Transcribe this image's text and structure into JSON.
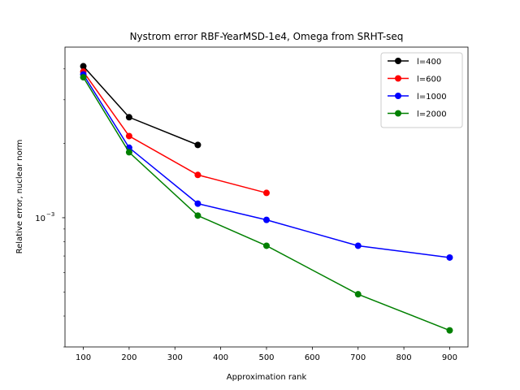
{
  "chart_data": {
    "type": "line",
    "title": "Nystrom error RBF-YearMSD-1e4, Omega from SRHT-seq",
    "xlabel": "Approximation rank",
    "ylabel": "Relative error, nuclear norm",
    "xlim": [
      60,
      940
    ],
    "ylim": [
      0.0003,
      0.0049
    ],
    "yscale": "log",
    "xticks": [
      100,
      200,
      300,
      400,
      500,
      600,
      700,
      800,
      900
    ],
    "yticks": [
      {
        "value": 0.001,
        "label": "10",
        "exp": "−3"
      }
    ],
    "grid": false,
    "legend_position": "top-right",
    "series": [
      {
        "name": "l=400",
        "color": "#000000",
        "x": [
          100,
          200,
          350
        ],
        "y": [
          0.0041,
          0.00255,
          0.00197
        ]
      },
      {
        "name": "l=600",
        "color": "#ff0000",
        "x": [
          100,
          200,
          350,
          500
        ],
        "y": [
          0.0039,
          0.00214,
          0.00149,
          0.00126
        ]
      },
      {
        "name": "l=1000",
        "color": "#0000ff",
        "x": [
          100,
          200,
          350,
          500,
          700,
          900
        ],
        "y": [
          0.0038,
          0.00192,
          0.00114,
          0.00098,
          0.00077,
          0.00069
        ]
      },
      {
        "name": "l=2000",
        "color": "#008000",
        "x": [
          100,
          200,
          350,
          500,
          700,
          900
        ],
        "y": [
          0.0037,
          0.00184,
          0.00102,
          0.00077,
          0.00049,
          0.00035
        ]
      }
    ]
  }
}
